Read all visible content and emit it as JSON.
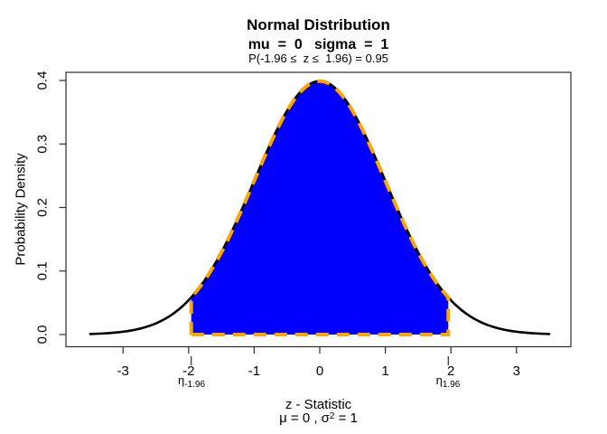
{
  "title": {
    "line1": "Normal Distribution",
    "line2": "mu  =  0   sigma  =  1",
    "line3": "P(-1.96 ≤  z ≤  1.96) = 0.95"
  },
  "x_axis": {
    "label": "z - Statistic",
    "sub_line": {
      "pre": "μ = 0 ,  σ",
      "sup": "2",
      "post": " = 1"
    },
    "tick_labels": [
      "-3",
      "-2",
      "-1",
      "0",
      "1",
      "2",
      "3"
    ]
  },
  "y_axis": {
    "label": "Probability Density",
    "tick_labels": [
      "0.0",
      "0.1",
      "0.2",
      "0.3",
      "0.4"
    ]
  },
  "annotations": {
    "eta_left": {
      "symbol": "η",
      "subscript": "-1.96"
    },
    "eta_right": {
      "symbol": "η",
      "subscript": "1.96"
    }
  },
  "chart_data": {
    "type": "area",
    "title": "Normal Distribution",
    "subtitle": "mu = 0  sigma = 1",
    "annotation": "P(-1.96 ≤ z ≤ 1.96) = 0.95",
    "distribution": "normal",
    "mu": 0,
    "sigma": 1,
    "curve_x_range": [
      -3.5,
      3.5
    ],
    "x_ticks": [
      -3,
      -2,
      -1,
      0,
      1,
      2,
      3
    ],
    "y_ticks": [
      0,
      0.1,
      0.2,
      0.3,
      0.4
    ],
    "xlim": [
      -3.87,
      3.83
    ],
    "ylim": [
      -0.019,
      0.413
    ],
    "xlabel": "z - Statistic",
    "ylabel": "Probability Density",
    "shade_from": -1.96,
    "shade_to": 1.96,
    "shade_probability": 0.95,
    "peak_density": 0.3989,
    "boundary_density": 0.0584,
    "grid": false,
    "legend": false,
    "colors": {
      "curve": "#000000",
      "fill": "#0000FF",
      "shade_border": "#FFA500",
      "axis": "#2b2b2b",
      "text": "#000000"
    }
  }
}
